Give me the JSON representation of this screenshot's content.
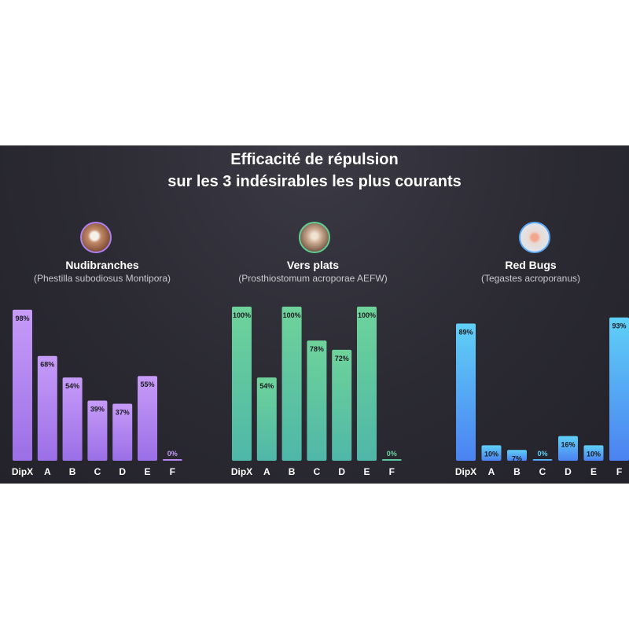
{
  "title": {
    "line1": "Efficacité de répulsion",
    "line2": "sur les 3 indésirables les plus courants"
  },
  "colors": {
    "panel": "#2b2a33",
    "purple_top": "#c79bf8",
    "purple_bottom": "#9b6fe6",
    "green_top": "#6ed39a",
    "green_bottom": "#4fb7a8",
    "blue_top": "#5fd0f6",
    "blue_bottom": "#4b82f2"
  },
  "chart_data": [
    {
      "type": "bar",
      "title": "Nudibranches",
      "subtitle": "(Phestilla subodiosus Montipora)",
      "icon": "nudibranch-photo-icon",
      "categories": [
        "DipX",
        "A",
        "B",
        "C",
        "D",
        "E",
        "F"
      ],
      "values": [
        98,
        68,
        54,
        39,
        37,
        55,
        0
      ],
      "labels": [
        "98%",
        "68%",
        "54%",
        "39%",
        "37%",
        "55%",
        "0%"
      ],
      "ylim": [
        0,
        100
      ],
      "palette": [
        "#c79bf8",
        "#9b6fe6"
      ]
    },
    {
      "type": "bar",
      "title": "Vers plats",
      "subtitle": "(Prosthiostomum acroporae AEFW)",
      "icon": "flatworm-photo-icon",
      "categories": [
        "DipX",
        "A",
        "B",
        "C",
        "D",
        "E",
        "F"
      ],
      "values": [
        100,
        54,
        100,
        78,
        72,
        100,
        0
      ],
      "labels": [
        "100%",
        "54%",
        "100%",
        "78%",
        "72%",
        "100%",
        "0%"
      ],
      "ylim": [
        0,
        100
      ],
      "palette": [
        "#6ed39a",
        "#4fb7a8"
      ]
    },
    {
      "type": "bar",
      "title": "Red Bugs",
      "subtitle": "(Tegastes acroporanus)",
      "icon": "red-bug-photo-icon",
      "categories": [
        "DipX",
        "A",
        "B",
        "C",
        "D",
        "E",
        "F"
      ],
      "values": [
        89,
        10,
        7,
        0,
        16,
        10,
        93
      ],
      "labels": [
        "89%",
        "10%",
        "7%",
        "0%",
        "16%",
        "10%",
        "93%"
      ],
      "ylim": [
        0,
        100
      ],
      "palette": [
        "#5fd0f6",
        "#4b82f2"
      ]
    }
  ]
}
